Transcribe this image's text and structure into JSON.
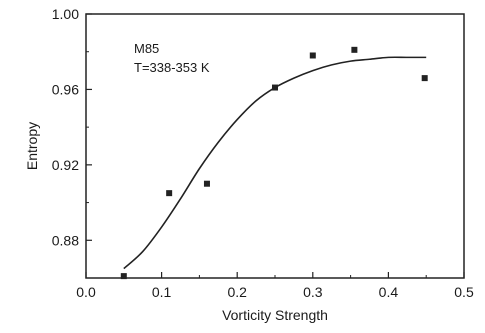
{
  "chart_data": {
    "type": "scatter",
    "title": "",
    "xlabel": "Vorticity Strength",
    "ylabel": "Entropy",
    "xlim": [
      0.0,
      0.5
    ],
    "ylim": [
      0.86,
      1.0
    ],
    "x_ticks": [
      "0.0",
      "0.1",
      "0.2",
      "0.3",
      "0.4",
      "0.5"
    ],
    "y_ticks": [
      "0.88",
      "0.92",
      "0.96",
      "1.00"
    ],
    "annotation_lines": [
      "M85",
      "T=338-353 K"
    ],
    "legend": "none",
    "grid": false,
    "series": [
      {
        "kind": "points",
        "marker": "square",
        "x": [
          0.05,
          0.11,
          0.16,
          0.25,
          0.3,
          0.355,
          0.448
        ],
        "y": [
          0.861,
          0.905,
          0.91,
          0.961,
          0.978,
          0.981,
          0.966
        ]
      },
      {
        "kind": "fit-curve",
        "x": [
          0.05,
          0.075,
          0.1,
          0.125,
          0.15,
          0.175,
          0.2,
          0.225,
          0.25,
          0.275,
          0.3,
          0.325,
          0.35,
          0.375,
          0.4,
          0.425,
          0.45
        ],
        "y": [
          0.865,
          0.874,
          0.887,
          0.902,
          0.918,
          0.932,
          0.944,
          0.954,
          0.961,
          0.966,
          0.97,
          0.973,
          0.975,
          0.976,
          0.977,
          0.977,
          0.977
        ]
      }
    ],
    "colors": {
      "points": "#222222",
      "curve": "#222222",
      "axes": "#222222"
    }
  }
}
